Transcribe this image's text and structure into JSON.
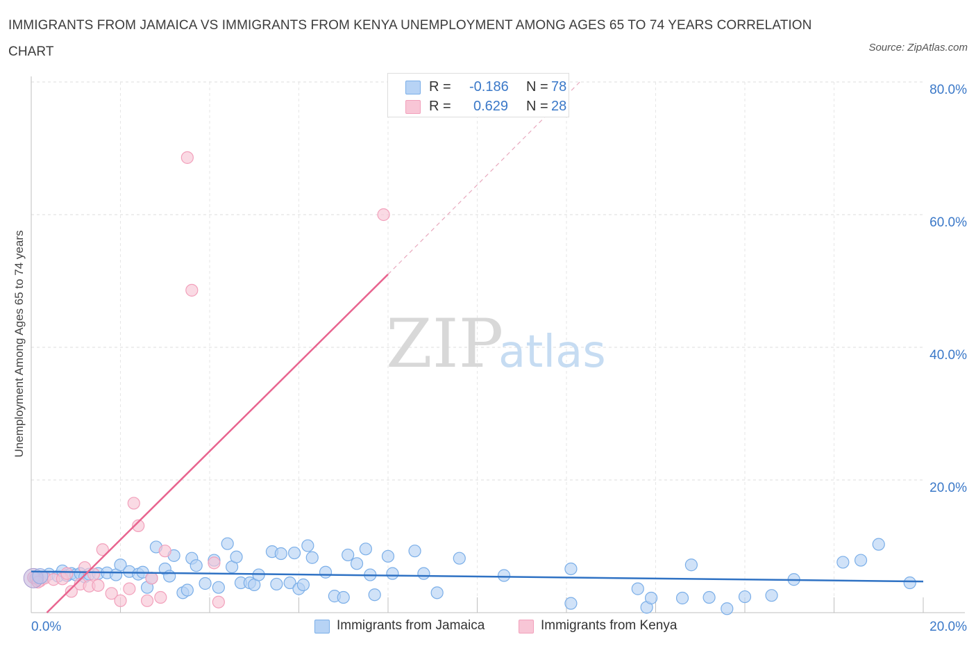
{
  "title": "IMMIGRANTS FROM JAMAICA VS IMMIGRANTS FROM KENYA UNEMPLOYMENT AMONG AGES 65 TO 74 YEARS CORRELATION CHART",
  "source": "Source: ZipAtlas.com",
  "watermark": {
    "zip": "ZIP",
    "atlas": "atlas"
  },
  "legend_stats": [
    {
      "r_label": "R =",
      "r_value": "-0.186",
      "n_label": "N =",
      "n_value": "78"
    },
    {
      "r_label": "R =",
      "r_value": "0.629",
      "n_label": "N =",
      "n_value": "28"
    }
  ],
  "chart_data": {
    "type": "scatter",
    "ylabel": "Unemployment Among Ages 65 to 74 years",
    "xlim": [
      0,
      20
    ],
    "ylim": [
      0,
      80
    ],
    "x_tick_labels": [
      "0.0%",
      "20.0%"
    ],
    "y_ticks": [
      {
        "value": 20,
        "label": "20.0%"
      },
      {
        "value": 40,
        "label": "40.0%"
      },
      {
        "value": 60,
        "label": "60.0%"
      },
      {
        "value": 80,
        "label": "80.0%"
      }
    ],
    "grid": true,
    "legend": "bottom-center",
    "series": [
      {
        "name": "Immigrants from Jamaica",
        "color": "#7aaee8",
        "fill": "#b7d3f5",
        "line_color": "#2f72c4",
        "trend": {
          "x0": 0,
          "y0": 6.2,
          "x1": 20,
          "y1": 4.7,
          "dashed_to": null
        },
        "points": [
          [
            0.1,
            5.2
          ],
          [
            0.3,
            5.4
          ],
          [
            0.4,
            5.8
          ],
          [
            0.6,
            5.5
          ],
          [
            0.7,
            6.3
          ],
          [
            0.8,
            5.6
          ],
          [
            0.9,
            5.9
          ],
          [
            1.0,
            5.7
          ],
          [
            1.1,
            5.9
          ],
          [
            1.2,
            5.4
          ],
          [
            1.3,
            5.8
          ],
          [
            1.5,
            5.9
          ],
          [
            1.7,
            6.0
          ],
          [
            1.9,
            5.7
          ],
          [
            2.0,
            7.2
          ],
          [
            2.2,
            6.2
          ],
          [
            2.4,
            5.8
          ],
          [
            2.5,
            6.1
          ],
          [
            2.6,
            3.8
          ],
          [
            2.7,
            5.2
          ],
          [
            2.8,
            9.9
          ],
          [
            3.0,
            6.6
          ],
          [
            3.1,
            5.5
          ],
          [
            3.2,
            8.6
          ],
          [
            3.4,
            3.0
          ],
          [
            3.5,
            3.4
          ],
          [
            3.6,
            8.2
          ],
          [
            3.7,
            7.1
          ],
          [
            3.9,
            4.4
          ],
          [
            4.1,
            7.9
          ],
          [
            4.2,
            3.8
          ],
          [
            4.4,
            10.4
          ],
          [
            4.5,
            6.9
          ],
          [
            4.6,
            8.4
          ],
          [
            4.7,
            4.5
          ],
          [
            4.9,
            4.5
          ],
          [
            5.0,
            4.2
          ],
          [
            5.1,
            5.7
          ],
          [
            5.4,
            9.2
          ],
          [
            5.5,
            4.3
          ],
          [
            5.6,
            8.9
          ],
          [
            5.8,
            4.5
          ],
          [
            5.9,
            9.0
          ],
          [
            6.0,
            3.6
          ],
          [
            6.1,
            4.2
          ],
          [
            6.2,
            10.1
          ],
          [
            6.3,
            8.3
          ],
          [
            6.6,
            6.1
          ],
          [
            6.8,
            2.5
          ],
          [
            7.0,
            2.3
          ],
          [
            7.1,
            8.7
          ],
          [
            7.3,
            7.4
          ],
          [
            7.5,
            9.6
          ],
          [
            7.6,
            5.7
          ],
          [
            7.7,
            2.7
          ],
          [
            8.0,
            8.5
          ],
          [
            8.1,
            5.9
          ],
          [
            8.6,
            9.3
          ],
          [
            8.8,
            5.9
          ],
          [
            9.1,
            3.0
          ],
          [
            9.6,
            8.2
          ],
          [
            10.6,
            5.6
          ],
          [
            12.1,
            6.6
          ],
          [
            12.1,
            1.4
          ],
          [
            13.6,
            3.6
          ],
          [
            13.8,
            0.8
          ],
          [
            13.9,
            2.2
          ],
          [
            14.6,
            2.2
          ],
          [
            14.8,
            7.2
          ],
          [
            15.2,
            2.3
          ],
          [
            15.6,
            0.6
          ],
          [
            16.0,
            2.4
          ],
          [
            16.6,
            2.6
          ],
          [
            17.1,
            5.0
          ],
          [
            18.2,
            7.6
          ],
          [
            18.6,
            7.9
          ],
          [
            19.0,
            10.3
          ],
          [
            19.7,
            4.5
          ]
        ]
      },
      {
        "name": "Immigrants from Kenya",
        "color": "#f2a0bb",
        "fill": "#f8c6d6",
        "line_color": "#e8648f",
        "trend": {
          "x0": 0.35,
          "y0": 0,
          "x1": 8.0,
          "y1": 51.0,
          "dashed_to": [
            12.3,
            80.0
          ]
        },
        "points": [
          [
            0.2,
            4.8
          ],
          [
            0.3,
            5.2
          ],
          [
            0.5,
            5.0
          ],
          [
            0.7,
            5.1
          ],
          [
            0.8,
            5.9
          ],
          [
            0.9,
            3.2
          ],
          [
            1.1,
            4.3
          ],
          [
            1.2,
            6.8
          ],
          [
            1.3,
            4.0
          ],
          [
            1.4,
            5.8
          ],
          [
            1.5,
            4.1
          ],
          [
            1.6,
            9.5
          ],
          [
            1.8,
            2.9
          ],
          [
            2.0,
            1.8
          ],
          [
            2.2,
            3.6
          ],
          [
            2.3,
            16.5
          ],
          [
            2.4,
            13.1
          ],
          [
            2.6,
            1.8
          ],
          [
            2.7,
            5.2
          ],
          [
            2.9,
            2.3
          ],
          [
            3.0,
            9.3
          ],
          [
            3.5,
            68.6
          ],
          [
            3.6,
            48.6
          ],
          [
            4.1,
            7.5
          ],
          [
            4.2,
            1.6
          ],
          [
            7.9,
            60.0
          ],
          [
            0.05,
            5.3
          ],
          [
            0.15,
            4.6
          ]
        ]
      }
    ]
  }
}
